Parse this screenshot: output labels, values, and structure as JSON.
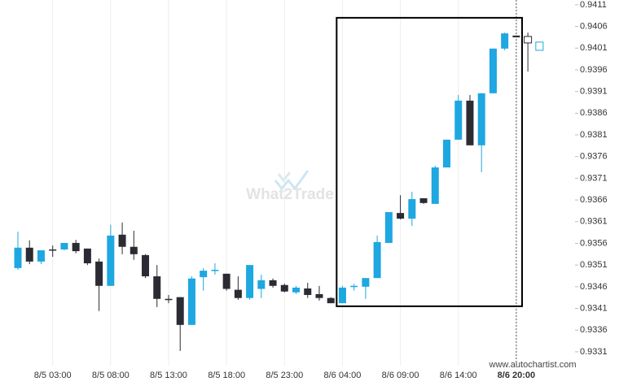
{
  "chart_data": {
    "type": "candlestick",
    "watermark": "What2Trade",
    "source": "www.autochartist.com",
    "categories": [
      null,
      null,
      null,
      "8/5 03:00",
      null,
      null,
      null,
      null,
      "8/5 08:00",
      null,
      null,
      null,
      null,
      "8/5 13:00",
      null,
      null,
      null,
      null,
      "8/5 18:00",
      null,
      null,
      null,
      null,
      "8/5 23:00",
      null,
      null,
      null,
      null,
      "8/6 04:00",
      null,
      null,
      null,
      null,
      "8/6 09:00",
      null,
      null,
      null,
      null,
      "8/6 14:00",
      null,
      null,
      null,
      null,
      "8/6 20:00",
      null,
      null
    ],
    "candles": {
      "open": [
        0.93503,
        0.9355,
        0.93518,
        0.93546,
        0.93546,
        0.93561,
        0.93548,
        0.93518,
        0.93462,
        0.9358,
        0.93552,
        0.93533,
        0.93484,
        0.93432,
        0.93436,
        0.93372,
        0.93482,
        0.93497,
        0.9349,
        0.93453,
        0.93434,
        0.93455,
        0.93475,
        0.93464,
        0.93447,
        0.93456,
        0.93443,
        0.93434,
        0.93422,
        0.9346,
        0.9346,
        0.9348,
        0.93561,
        0.9363,
        0.93617,
        0.93664,
        0.93651,
        0.93735,
        0.93799,
        0.93889,
        0.93786,
        0.93906,
        0.94009,
        0.94039,
        null,
        null
      ],
      "high": [
        0.93587,
        0.93567,
        0.93544,
        0.93555,
        0.93561,
        0.93568,
        0.93548,
        0.93525,
        0.93603,
        0.93608,
        0.93589,
        0.93535,
        0.9351,
        0.93441,
        0.93436,
        0.93484,
        0.93503,
        0.93514,
        0.9349,
        0.93484,
        0.9351,
        0.93488,
        0.93479,
        0.93467,
        0.93462,
        0.93469,
        0.93462,
        0.93436,
        0.93462,
        0.93467,
        0.9348,
        0.93578,
        0.93632,
        0.93671,
        0.93679,
        0.93664,
        0.93739,
        0.93799,
        0.93902,
        0.93902,
        0.93906,
        0.94009,
        0.94046,
        0.94039,
        null,
        null
      ],
      "low": [
        0.93499,
        0.93512,
        0.93512,
        0.93529,
        0.93544,
        0.93537,
        0.9351,
        0.93404,
        0.93462,
        0.93535,
        0.93522,
        0.9348,
        0.93413,
        0.93422,
        0.93312,
        0.93372,
        0.93451,
        0.93488,
        0.93451,
        0.9343,
        0.9343,
        0.93434,
        0.93458,
        0.93447,
        0.93443,
        0.93434,
        0.93428,
        0.93422,
        0.93422,
        0.93451,
        0.93432,
        0.9348,
        0.93561,
        0.93615,
        0.936,
        0.93651,
        0.93651,
        0.93735,
        0.93799,
        0.93786,
        0.93724,
        0.93906,
        0.94005,
        0.94035,
        null,
        null
      ],
      "close": [
        0.9355,
        0.93518,
        0.93544,
        0.93544,
        0.93561,
        0.93542,
        0.93514,
        0.93462,
        0.93578,
        0.93552,
        0.93535,
        0.93484,
        0.93432,
        0.9343,
        0.93372,
        0.93479,
        0.93497,
        0.93499,
        0.93455,
        0.93434,
        0.9351,
        0.93475,
        0.93462,
        0.93449,
        0.93458,
        0.93441,
        0.93434,
        0.93422,
        0.93458,
        0.93462,
        0.9348,
        0.93563,
        0.93632,
        0.93617,
        0.93662,
        0.93653,
        0.93735,
        0.93799,
        0.93889,
        0.93786,
        0.93906,
        0.94009,
        0.94044,
        0.94035,
        null,
        null
      ]
    },
    "forecast": {
      "open": [
        null,
        null,
        null,
        null,
        null,
        null,
        null,
        null,
        null,
        null,
        null,
        null,
        null,
        null,
        null,
        null,
        null,
        null,
        null,
        null,
        null,
        null,
        null,
        null,
        null,
        null,
        null,
        null,
        null,
        null,
        null,
        null,
        null,
        null,
        null,
        null,
        null,
        null,
        null,
        null,
        null,
        null,
        null,
        null,
        0.94037,
        0.94005
      ],
      "high": [
        null,
        null,
        null,
        null,
        null,
        null,
        null,
        null,
        null,
        null,
        null,
        null,
        null,
        null,
        null,
        null,
        null,
        null,
        null,
        null,
        null,
        null,
        null,
        null,
        null,
        null,
        null,
        null,
        null,
        null,
        null,
        null,
        null,
        null,
        null,
        null,
        null,
        null,
        null,
        null,
        null,
        null,
        null,
        null,
        0.94046,
        0.94024
      ],
      "low": [
        null,
        null,
        null,
        null,
        null,
        null,
        null,
        null,
        null,
        null,
        null,
        null,
        null,
        null,
        null,
        null,
        null,
        null,
        null,
        null,
        null,
        null,
        null,
        null,
        null,
        null,
        null,
        null,
        null,
        null,
        null,
        null,
        null,
        null,
        null,
        null,
        null,
        null,
        null,
        null,
        null,
        null,
        null,
        null,
        0.93956,
        0.94005
      ],
      "close": [
        null,
        null,
        null,
        null,
        null,
        null,
        null,
        null,
        null,
        null,
        null,
        null,
        null,
        null,
        null,
        null,
        null,
        null,
        null,
        null,
        null,
        null,
        null,
        null,
        null,
        null,
        null,
        null,
        null,
        null,
        null,
        null,
        null,
        null,
        null,
        null,
        null,
        null,
        null,
        null,
        null,
        null,
        null,
        null,
        0.94022,
        0.94024
      ]
    },
    "up_color": "#1ea7e1",
    "down_color": "#2b2b33",
    "highlight": {
      "start": 28,
      "end": 43,
      "low": 0.93415,
      "high": 0.9408,
      "color": "#000000"
    },
    "ylim": [
      0.93278,
      0.94121
    ],
    "yticks": [
      0.9331,
      0.9336,
      0.9341,
      0.9346,
      0.9351,
      0.9356,
      0.9361,
      0.9366,
      0.9371,
      0.9376,
      0.9381,
      0.9386,
      0.9391,
      0.9396,
      0.9401,
      0.9406,
      0.9411
    ],
    "grid": true
  }
}
